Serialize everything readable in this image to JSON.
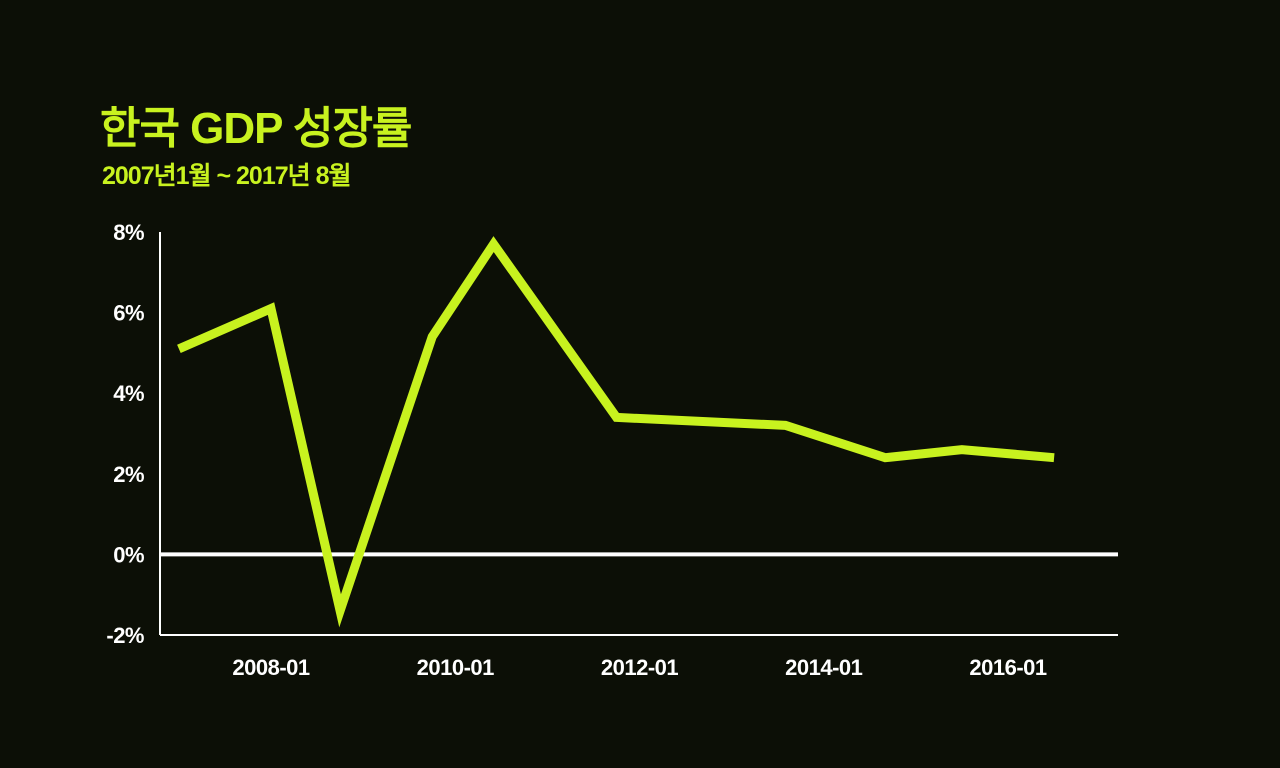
{
  "chart_data": {
    "type": "line",
    "title": "한국 GDP 성장률",
    "subtitle": "2007년1월 ~ 2017년 8월",
    "xlabel": "",
    "ylabel": "",
    "x_tick_labels": [
      "2008-01",
      "2010-01",
      "2012-01",
      "2014-01",
      "2016-01"
    ],
    "y_tick_labels": [
      "8%",
      "6%",
      "4%",
      "2%",
      "0%",
      "-2%"
    ],
    "ylim": [
      -2,
      8
    ],
    "grid": false,
    "series": [
      {
        "x": [
          "2007-01",
          "2008-01",
          "2008-10",
          "2009-10",
          "2010-06",
          "2011-10",
          "2013-08",
          "2014-09",
          "2015-07",
          "2016-07"
        ],
        "values": [
          5.1,
          6.1,
          -1.4,
          5.4,
          7.7,
          3.4,
          3.2,
          2.4,
          2.6,
          2.4
        ]
      }
    ],
    "colors": {
      "line": "#c8f21f",
      "zero_line": "#ffffff",
      "axis": "#ffffff",
      "text": "#ffffff",
      "background": "#0c0f06"
    }
  }
}
